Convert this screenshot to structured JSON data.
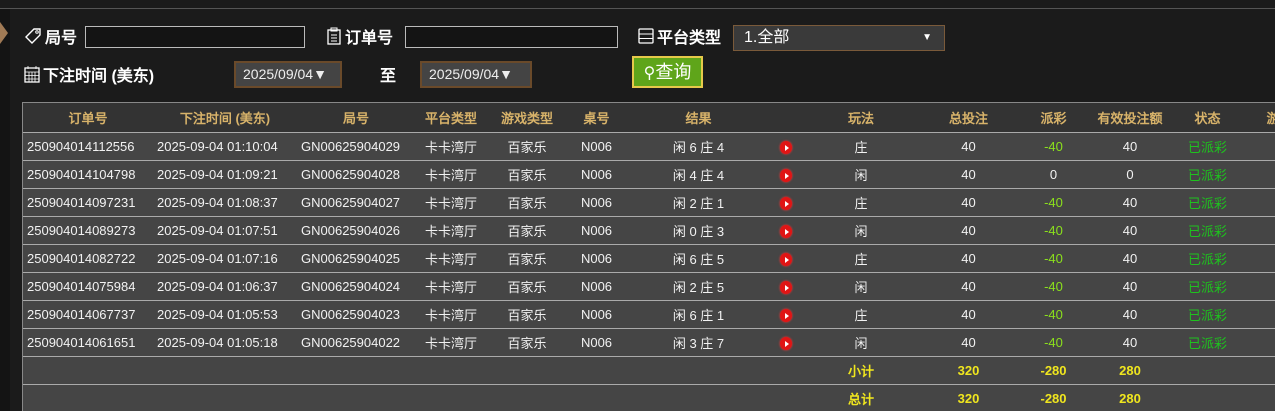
{
  "filters": {
    "round_label": "局号",
    "round_value": "",
    "order_label": "订单号",
    "order_value": "",
    "platform_label": "平台类型",
    "platform_selected": "1.全部",
    "time_label": "下注时间 (美东)",
    "date_from": "2025/09/04▼",
    "to_label": "至",
    "date_to": "2025/09/04▼",
    "query_label": "查询"
  },
  "colors": {
    "header_text": "#d8b36a",
    "payout_negative": "#8be01c",
    "status": "#1ec21e",
    "summary": "#f0e61e",
    "query_button": "#5fa51a"
  },
  "table": {
    "headers": [
      "订单号",
      "下注时间 (美东)",
      "局号",
      "平台类型",
      "游戏类型",
      "桌号",
      "结果",
      "",
      "玩法",
      "总投注",
      "派彩",
      "有效投注额",
      "状态",
      "游戏"
    ],
    "rows": [
      {
        "order": "250904014112556",
        "time": "2025-09-04 01:10:04",
        "round": "GN00625904029",
        "platform": "卡卡湾厅",
        "game": "百家乐",
        "table": "N006",
        "result": "闲 6 庄 4",
        "play": "庄",
        "bet": "40",
        "payout": "-40",
        "valid": "40",
        "status": "已派彩"
      },
      {
        "order": "250904014104798",
        "time": "2025-09-04 01:09:21",
        "round": "GN00625904028",
        "platform": "卡卡湾厅",
        "game": "百家乐",
        "table": "N006",
        "result": "闲 4 庄 4",
        "play": "闲",
        "bet": "40",
        "payout": "0",
        "valid": "0",
        "status": "已派彩"
      },
      {
        "order": "250904014097231",
        "time": "2025-09-04 01:08:37",
        "round": "GN00625904027",
        "platform": "卡卡湾厅",
        "game": "百家乐",
        "table": "N006",
        "result": "闲 2 庄 1",
        "play": "庄",
        "bet": "40",
        "payout": "-40",
        "valid": "40",
        "status": "已派彩"
      },
      {
        "order": "250904014089273",
        "time": "2025-09-04 01:07:51",
        "round": "GN00625904026",
        "platform": "卡卡湾厅",
        "game": "百家乐",
        "table": "N006",
        "result": "闲 0 庄 3",
        "play": "闲",
        "bet": "40",
        "payout": "-40",
        "valid": "40",
        "status": "已派彩"
      },
      {
        "order": "250904014082722",
        "time": "2025-09-04 01:07:16",
        "round": "GN00625904025",
        "platform": "卡卡湾厅",
        "game": "百家乐",
        "table": "N006",
        "result": "闲 6 庄 5",
        "play": "庄",
        "bet": "40",
        "payout": "-40",
        "valid": "40",
        "status": "已派彩"
      },
      {
        "order": "250904014075984",
        "time": "2025-09-04 01:06:37",
        "round": "GN00625904024",
        "platform": "卡卡湾厅",
        "game": "百家乐",
        "table": "N006",
        "result": "闲 2 庄 5",
        "play": "闲",
        "bet": "40",
        "payout": "-40",
        "valid": "40",
        "status": "已派彩"
      },
      {
        "order": "250904014067737",
        "time": "2025-09-04 01:05:53",
        "round": "GN00625904023",
        "platform": "卡卡湾厅",
        "game": "百家乐",
        "table": "N006",
        "result": "闲 6 庄 1",
        "play": "庄",
        "bet": "40",
        "payout": "-40",
        "valid": "40",
        "status": "已派彩"
      },
      {
        "order": "250904014061651",
        "time": "2025-09-04 01:05:18",
        "round": "GN00625904022",
        "platform": "卡卡湾厅",
        "game": "百家乐",
        "table": "N006",
        "result": "闲 3 庄 7",
        "play": "闲",
        "bet": "40",
        "payout": "-40",
        "valid": "40",
        "status": "已派彩"
      }
    ],
    "subtotal": {
      "label": "小计",
      "bet": "320",
      "payout": "-280",
      "valid": "280"
    },
    "total": {
      "label": "总计",
      "bet": "320",
      "payout": "-280",
      "valid": "280"
    }
  }
}
